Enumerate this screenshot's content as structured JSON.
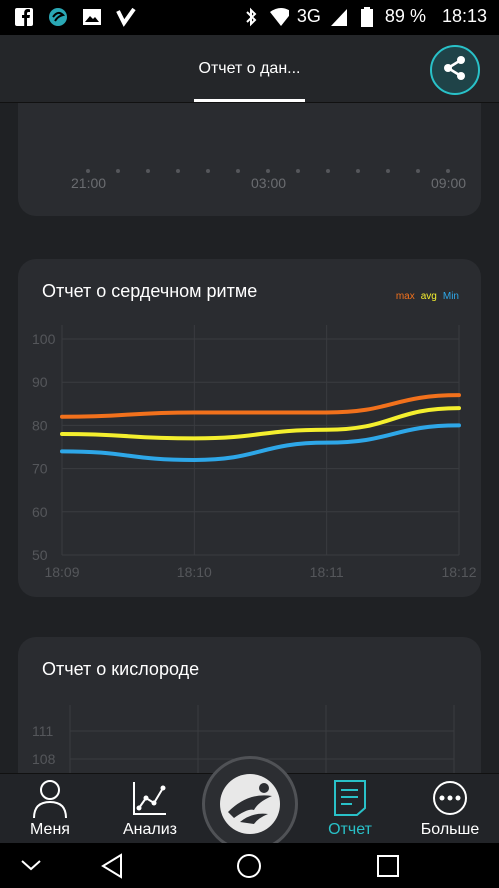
{
  "status_bar": {
    "network": "3G",
    "battery": "89 %",
    "time": "18:13"
  },
  "app_bar": {
    "title": "Отчет о дан...",
    "share_icon": "share-icon"
  },
  "sleep_card": {
    "time_labels": [
      "21:00",
      "03:00",
      "09:00"
    ]
  },
  "heart_card": {
    "title": "Отчет о сердечном ритме",
    "chart_data": {
      "type": "line",
      "x": [
        "18:09",
        "18:10",
        "18:11",
        "18:12"
      ],
      "y_ticks": [
        "100",
        "90",
        "80",
        "70",
        "60",
        "50"
      ],
      "ylim": [
        50,
        100
      ],
      "legend": [
        "max",
        "avg",
        "Min"
      ],
      "series": [
        {
          "name": "max",
          "color": "#f2711c",
          "values": [
            82,
            83,
            83,
            87
          ]
        },
        {
          "name": "avg",
          "color": "#f4ef2e",
          "values": [
            78,
            77,
            79,
            84
          ]
        },
        {
          "name": "Min",
          "color": "#2ea7e8",
          "values": [
            74,
            72,
            76,
            80
          ]
        }
      ]
    }
  },
  "oxygen_card": {
    "title": "Отчет о кислороде",
    "y_ticks": [
      "111",
      "108"
    ]
  },
  "bottom_nav": {
    "items": [
      {
        "label": "Меня",
        "icon": "person-icon",
        "color": "#ffffff"
      },
      {
        "label": "Анализ",
        "icon": "chart-icon",
        "color": "#ffffff"
      },
      {
        "label": "Отчет",
        "icon": "report-icon",
        "color": "#29c1c8"
      },
      {
        "label": "Больше",
        "icon": "more-icon",
        "color": "#ffffff"
      }
    ]
  },
  "colors": {
    "accent": "#29c1c8",
    "card_bg": "#2a2c30",
    "page_bg": "#1f2124"
  }
}
